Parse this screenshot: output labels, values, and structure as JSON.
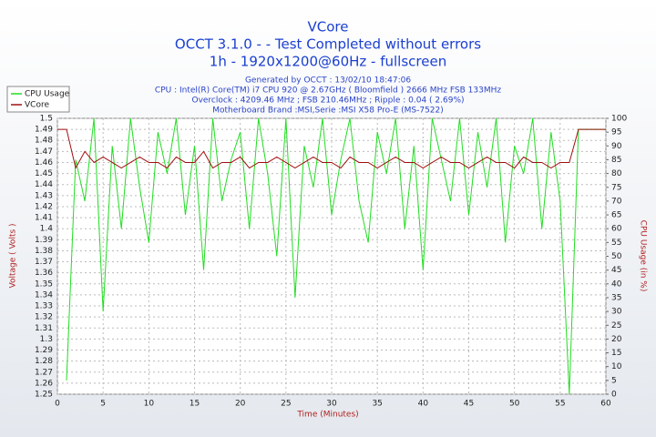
{
  "chart_data": {
    "type": "line",
    "title": "VCore",
    "subtitle": "OCCT 3.1.0 -  - Test Completed without errors",
    "subtitle2": "1h - 1920x1200@60Hz - fullscreen",
    "info": [
      "Generated by OCCT : 13/02/10 18:47:06",
      "CPU : Intel(R) Core(TM) i7 CPU 920 @ 2.67GHz ( Bloomfield ) 2666 MHz FSB 133MHz",
      "Overclock : 4209.46 MHz ; FSB 210.46MHz ; Ripple : 0.04 ( 2.69%)",
      "Motherboard Brand :MSI,Serie :MSI X58 Pro-E (MS-7522)"
    ],
    "xlabel": "Time (Minutes)",
    "ylabel": "Voltage ( Volts )",
    "y2label": "CPU Usage (in %)",
    "grid": true,
    "legend": "top-left",
    "x": [
      0,
      1,
      2,
      3,
      4,
      5,
      6,
      7,
      8,
      9,
      10,
      11,
      12,
      13,
      14,
      15,
      16,
      17,
      18,
      19,
      20,
      21,
      22,
      23,
      24,
      25,
      26,
      27,
      28,
      29,
      30,
      31,
      32,
      33,
      34,
      35,
      36,
      37,
      38,
      39,
      40,
      41,
      42,
      43,
      44,
      45,
      46,
      47,
      48,
      49,
      50,
      51,
      52,
      53,
      54,
      55,
      56,
      57,
      58,
      59,
      60
    ],
    "xlim": [
      0,
      60
    ],
    "xticks": [
      0,
      5,
      10,
      15,
      20,
      25,
      30,
      35,
      40,
      45,
      50,
      55,
      60
    ],
    "ylim": [
      1.25,
      1.5
    ],
    "yticks": [
      1.25,
      1.26,
      1.27,
      1.28,
      1.29,
      1.3,
      1.31,
      1.32,
      1.33,
      1.34,
      1.35,
      1.36,
      1.37,
      1.38,
      1.39,
      1.4,
      1.41,
      1.42,
      1.43,
      1.44,
      1.45,
      1.46,
      1.47,
      1.48,
      1.49,
      1.5
    ],
    "y2lim": [
      0,
      100
    ],
    "y2ticks": [
      0,
      5,
      10,
      15,
      20,
      25,
      30,
      35,
      40,
      45,
      50,
      55,
      60,
      65,
      70,
      75,
      80,
      85,
      90,
      95,
      100
    ],
    "series": [
      {
        "name": "CPU Usage",
        "color": "#22dd22",
        "axis": "y2",
        "values": [
          null,
          5,
          85,
          70,
          100,
          30,
          90,
          60,
          100,
          75,
          55,
          95,
          80,
          100,
          65,
          90,
          45,
          100,
          70,
          85,
          95,
          60,
          100,
          80,
          50,
          100,
          35,
          90,
          75,
          100,
          65,
          85,
          100,
          70,
          55,
          95,
          80,
          100,
          60,
          90,
          45,
          100,
          85,
          70,
          100,
          65,
          95,
          75,
          100,
          55,
          90,
          80,
          100,
          60,
          95,
          70,
          0,
          96,
          96,
          96,
          96
        ]
      },
      {
        "name": "VCore",
        "color": "#a01010",
        "values": [
          1.49,
          1.49,
          1.455,
          1.47,
          1.46,
          1.465,
          1.46,
          1.455,
          1.46,
          1.465,
          1.46,
          1.46,
          1.455,
          1.465,
          1.46,
          1.46,
          1.47,
          1.455,
          1.46,
          1.46,
          1.465,
          1.455,
          1.46,
          1.46,
          1.465,
          1.46,
          1.455,
          1.46,
          1.465,
          1.46,
          1.46,
          1.455,
          1.465,
          1.46,
          1.46,
          1.455,
          1.46,
          1.465,
          1.46,
          1.46,
          1.455,
          1.46,
          1.465,
          1.46,
          1.46,
          1.455,
          1.46,
          1.465,
          1.46,
          1.46,
          1.455,
          1.465,
          1.46,
          1.46,
          1.455,
          1.46,
          1.46,
          1.49,
          1.49,
          1.49,
          1.49
        ]
      }
    ]
  }
}
